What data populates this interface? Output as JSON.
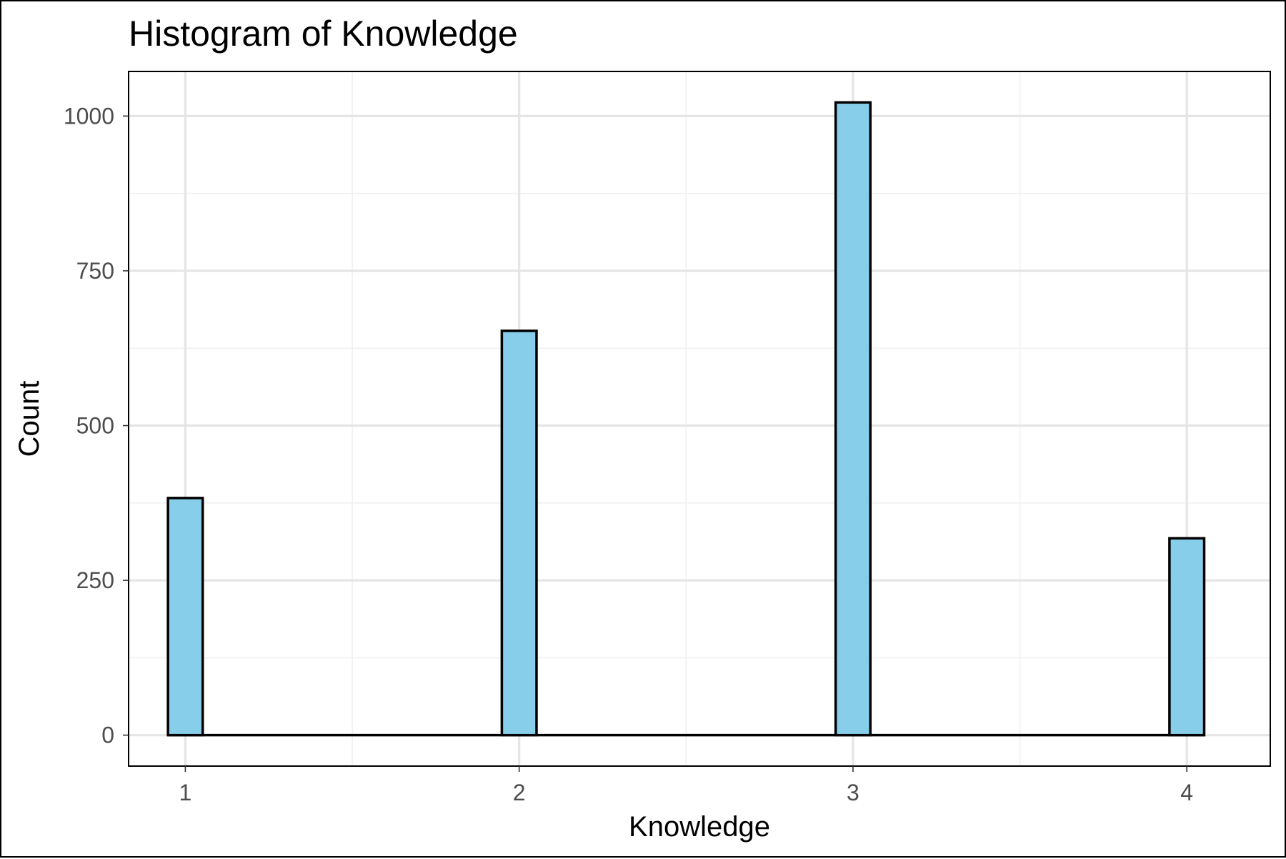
{
  "chart_data": {
    "type": "bar",
    "title": "Histogram of Knowledge",
    "xlabel": "Knowledge",
    "ylabel": "Count",
    "categories": [
      1,
      2,
      3,
      4
    ],
    "values": [
      383,
      653,
      1022,
      318
    ],
    "xlim": [
      0.83,
      4.25
    ],
    "ylim": [
      -50,
      1072
    ],
    "x_ticks": [
      1,
      2,
      3,
      4
    ],
    "x_tick_labels": [
      "1",
      "2",
      "3",
      "4"
    ],
    "y_ticks": [
      0,
      250,
      500,
      750,
      1000
    ],
    "y_tick_labels": [
      "0",
      "250",
      "500",
      "750",
      "1000"
    ],
    "bar_color": "#87CEEB",
    "outline_color": "#000000",
    "grid": true,
    "legend": "none"
  }
}
